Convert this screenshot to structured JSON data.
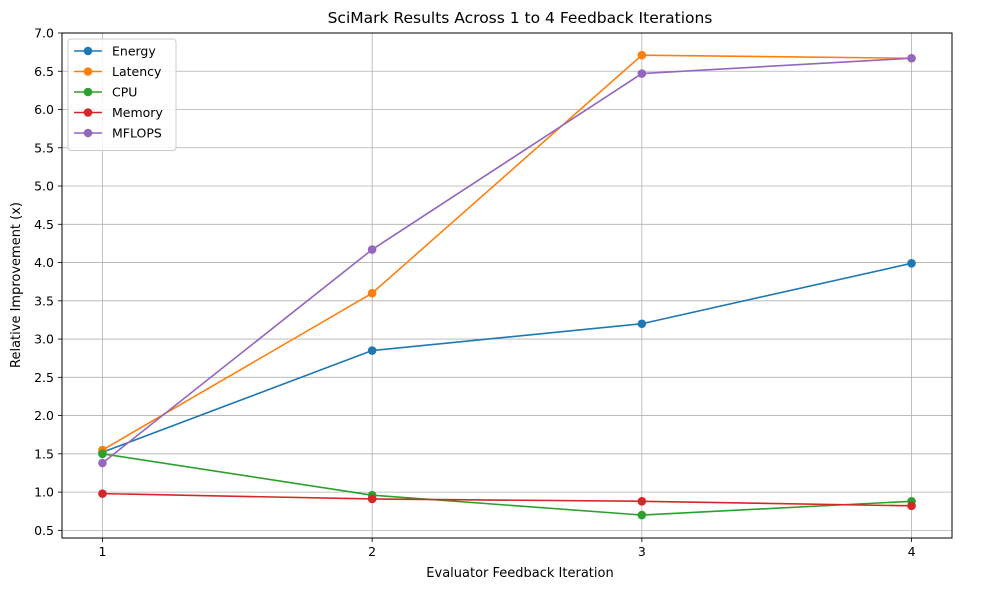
{
  "chart_data": {
    "type": "line",
    "title": "SciMark Results Across 1 to 4 Feedback Iterations",
    "xlabel": "Evaluator Feedback Iteration",
    "ylabel": "Relative Improvement (x)",
    "x": [
      1,
      2,
      3,
      4
    ],
    "x_tick_labels": [
      "1",
      "2",
      "3",
      "4"
    ],
    "y_ticks": [
      0.5,
      1.0,
      1.5,
      2.0,
      2.5,
      3.0,
      3.5,
      4.0,
      4.5,
      5.0,
      5.5,
      6.0,
      6.5,
      7.0
    ],
    "y_tick_labels": [
      "0.5",
      "1.0",
      "1.5",
      "2.0",
      "2.5",
      "3.0",
      "3.5",
      "4.0",
      "4.5",
      "5.0",
      "5.5",
      "6.0",
      "6.5",
      "7.0"
    ],
    "xlim": [
      0.85,
      4.15
    ],
    "ylim": [
      0.4,
      7.0
    ],
    "grid": true,
    "legend_position": "top-left",
    "series": [
      {
        "name": "Energy",
        "color": "#1f77b4",
        "values": [
          1.52,
          2.85,
          3.2,
          3.99
        ]
      },
      {
        "name": "Latency",
        "color": "#ff7f0e",
        "values": [
          1.55,
          3.6,
          6.71,
          6.67
        ]
      },
      {
        "name": "CPU",
        "color": "#2ca02c",
        "values": [
          1.5,
          0.96,
          0.7,
          0.88
        ]
      },
      {
        "name": "Memory",
        "color": "#d62728",
        "values": [
          0.98,
          0.91,
          0.88,
          0.82
        ]
      },
      {
        "name": "MFLOPS",
        "color": "#9467bd",
        "values": [
          1.38,
          4.17,
          6.47,
          6.67
        ]
      }
    ]
  }
}
